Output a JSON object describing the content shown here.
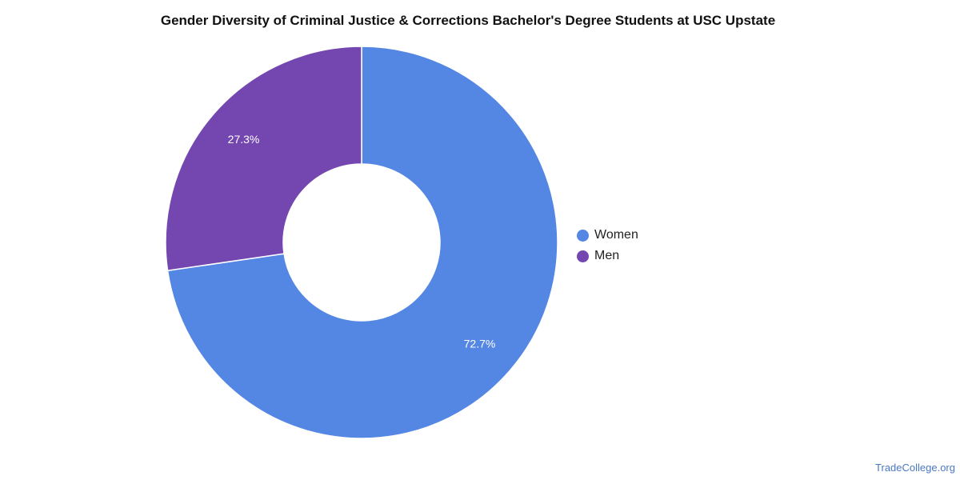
{
  "chart_data": {
    "type": "pie",
    "title": "Gender Diversity of Criminal Justice & Corrections Bachelor's Degree Students at USC Upstate",
    "categories": [
      "Women",
      "Men"
    ],
    "values": [
      72.7,
      27.3
    ],
    "labels": [
      "72.7%",
      "27.3%"
    ],
    "colors": [
      "#5486e3",
      "#7447b0"
    ],
    "donut": true,
    "legend_position": "right"
  },
  "legend": {
    "women_label": "Women",
    "men_label": "Men"
  },
  "watermark": "TradeCollege.org"
}
